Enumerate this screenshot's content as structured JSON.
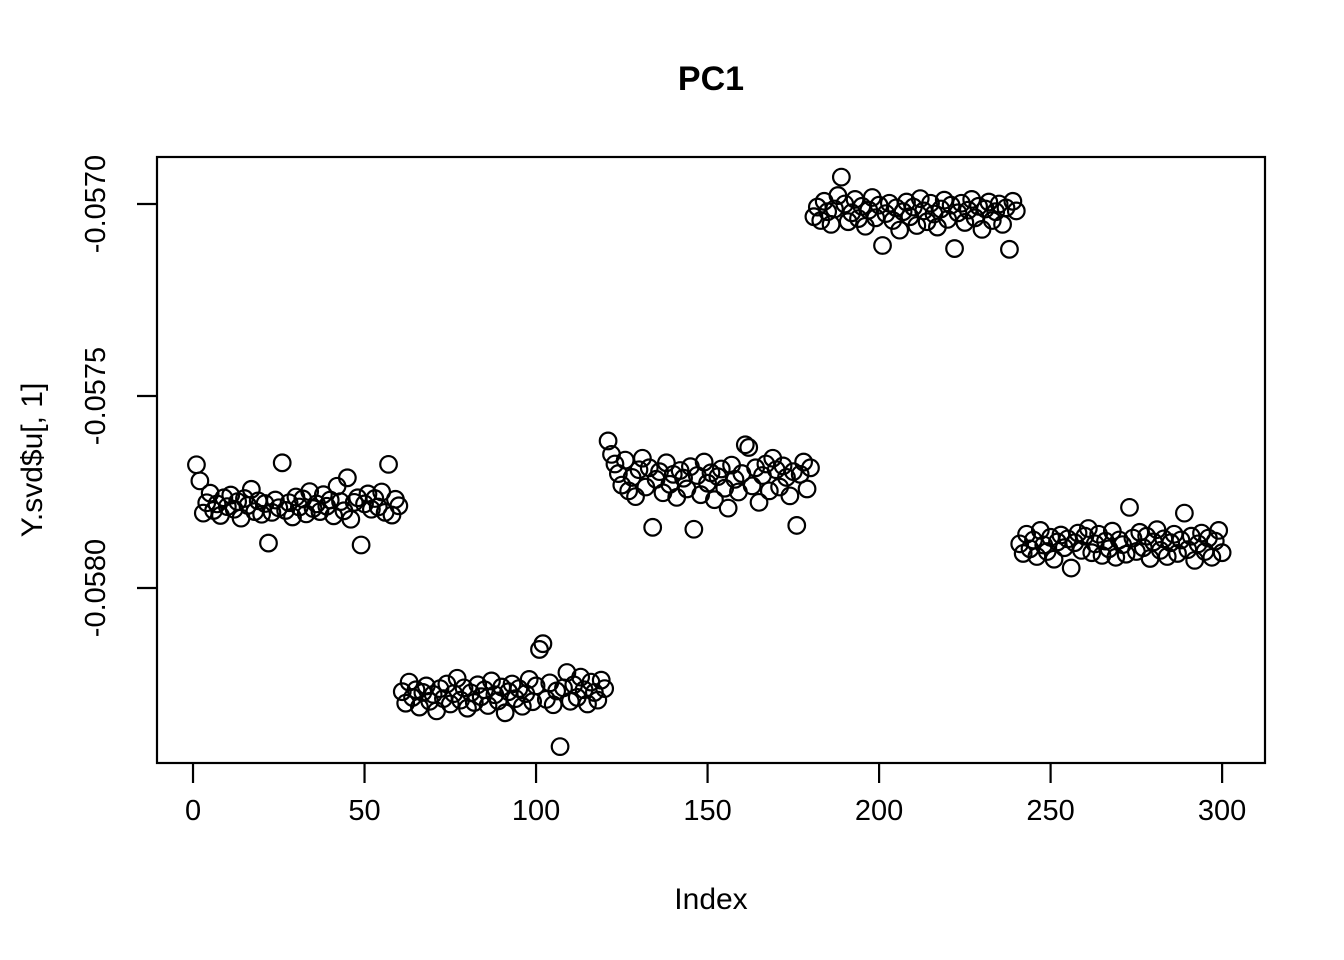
{
  "figure": {
    "title": "PC1",
    "xlabel": "Index",
    "ylabel": "Y.svd$u[, 1]"
  },
  "chart_data": {
    "type": "scatter",
    "title": "PC1",
    "xlabel": "Index",
    "ylabel": "Y.svd$u[, 1]",
    "marker": "open-circle",
    "point_color": "#000000",
    "background_color": "#ffffff",
    "grid": false,
    "n_points": 300,
    "xlim": [
      -10.5,
      312.5
    ],
    "ylim": [
      -0.0584557,
      -0.0568776
    ],
    "x_ticks": [
      0,
      50,
      100,
      150,
      200,
      250,
      300
    ],
    "x_tick_labels": [
      "0",
      "50",
      "100",
      "150",
      "200",
      "250",
      "300"
    ],
    "y_ticks": [
      -0.058,
      -0.0575,
      -0.057
    ],
    "y_tick_labels": [
      "-0.0580",
      "-0.0575",
      "-0.0570"
    ],
    "y_value_encoding": "y = mean + offset * 1e-6 ; x = index_start + position",
    "clusters": [
      {
        "index_start": 1,
        "index_end": 60,
        "mean": -0.057783,
        "offsets_1e6": [
          104,
          62,
          -22,
          5,
          30,
          -15,
          2,
          -28,
          18,
          -5,
          25,
          -12,
          8,
          -35,
          16,
          -2,
          40,
          -18,
          10,
          -25,
          3,
          -100,
          -20,
          12,
          -8,
          109,
          -15,
          5,
          -32,
          20,
          -6,
          15,
          -24,
          34,
          -10,
          2,
          -18,
          26,
          -4,
          12,
          -29,
          48,
          8,
          -16,
          70,
          -38,
          6,
          18,
          -105,
          2,
          28,
          -12,
          16,
          -6,
          33,
          -20,
          105,
          -27,
          14,
          -3
        ]
      },
      {
        "index_start": 61,
        "index_end": 120,
        "mean": -0.05828,
        "offsets_1e6": [
          10,
          -20,
          35,
          -5,
          15,
          -30,
          8,
          25,
          -15,
          3,
          -40,
          18,
          -8,
          30,
          -22,
          5,
          45,
          -12,
          20,
          -33,
          7,
          -18,
          28,
          -3,
          15,
          -26,
          38,
          2,
          -14,
          22,
          -45,
          10,
          30,
          -8,
          18,
          -28,
          5,
          42,
          -16,
          25,
          120,
          135,
          -10,
          33,
          -24,
          12,
          -133,
          20,
          60,
          -15,
          28,
          -5,
          48,
          15,
          -22,
          35,
          8,
          -12,
          40,
          18
        ]
      },
      {
        "index_start": 121,
        "index_end": 180,
        "mean": -0.057722,
        "offsets_1e6": [
          105,
          70,
          45,
          20,
          -10,
          55,
          -25,
          10,
          -40,
          30,
          60,
          -15,
          35,
          -120,
          5,
          25,
          -30,
          48,
          -8,
          18,
          -42,
          28,
          8,
          -20,
          38,
          -125,
          15,
          -35,
          50,
          -5,
          22,
          -48,
          12,
          32,
          -18,
          -70,
          42,
          5,
          -28,
          20,
          95,
          88,
          -12,
          35,
          -55,
          15,
          45,
          -25,
          60,
          30,
          -15,
          40,
          10,
          -38,
          25,
          -115,
          18,
          50,
          -20,
          35
        ]
      },
      {
        "index_start": 181,
        "index_end": 240,
        "mean": -0.057028,
        "offsets_1e6": [
          -5,
          20,
          -15,
          35,
          8,
          -25,
          15,
          50,
          98,
          28,
          -18,
          5,
          40,
          -10,
          22,
          -30,
          12,
          45,
          -8,
          25,
          -80,
          3,
          30,
          -15,
          18,
          -40,
          8,
          33,
          -5,
          20,
          -28,
          42,
          10,
          -18,
          30,
          2,
          -32,
          15,
          38,
          -12,
          25,
          -88,
          5,
          30,
          -20,
          12,
          40,
          -8,
          22,
          -38,
          15,
          33,
          -15,
          8,
          28,
          -25,
          18,
          -90,
          35,
          10
        ]
      },
      {
        "index_start": 241,
        "index_end": 300,
        "mean": -0.05789,
        "offsets_1e6": [
          5,
          -20,
          30,
          -8,
          15,
          -28,
          40,
          2,
          -15,
          22,
          -35,
          10,
          28,
          -5,
          18,
          -58,
          8,
          33,
          -12,
          25,
          45,
          -18,
          5,
          30,
          -25,
          12,
          -8,
          38,
          -30,
          15,
          3,
          -22,
          100,
          20,
          -15,
          35,
          -5,
          25,
          -33,
          10,
          42,
          -12,
          18,
          -28,
          8,
          30,
          -20,
          15,
          85,
          -10,
          25,
          -38,
          5,
          33,
          -15,
          20,
          -30,
          12,
          40,
          -18
        ]
      }
    ]
  }
}
